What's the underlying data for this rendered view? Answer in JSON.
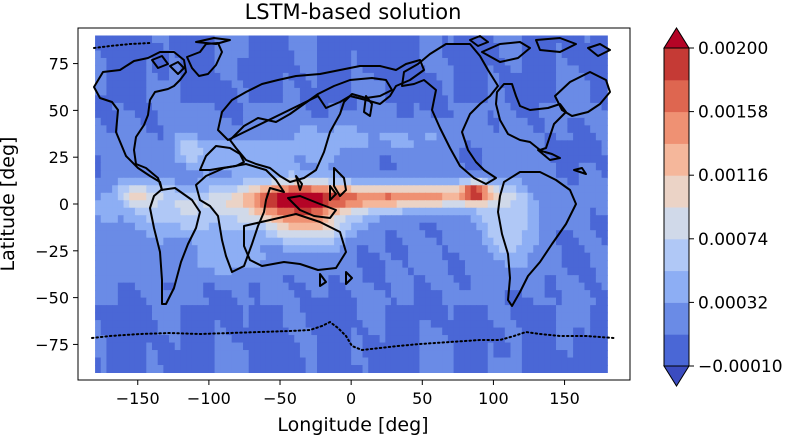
{
  "chart_data": {
    "type": "heatmap",
    "title": "LSTM-based solution",
    "xlabel": "Longitude [deg]",
    "ylabel": "Latitude [deg]",
    "xlim": [
      -192,
      196
    ],
    "ylim": [
      -94,
      94
    ],
    "x_ticks": [
      -150,
      -100,
      -50,
      0,
      50,
      100,
      150
    ],
    "x_tick_labels": [
      "−150",
      "−100",
      "−50",
      "0",
      "50",
      "100",
      "150"
    ],
    "y_ticks": [
      75,
      50,
      25,
      0,
      -25,
      -50,
      -75
    ],
    "y_tick_labels": [
      "75",
      "50",
      "25",
      "0",
      "−25",
      "−50",
      "−75"
    ],
    "grid": false,
    "data_extent": {
      "lon": [
        -180,
        180
      ],
      "lat": [
        -90,
        90
      ]
    },
    "colorbar": {
      "levels": [
        -0.0001,
        0.00011,
        0.00032,
        0.00053,
        0.00074,
        0.00095,
        0.00116,
        0.00137,
        0.00158,
        0.00179,
        0.002
      ],
      "tick_values": [
        -0.0001,
        0.00032,
        0.00074,
        0.00116,
        0.00158,
        0.002
      ],
      "tick_labels": [
        "−0.00010",
        "0.00032",
        "0.00074",
        "0.00116",
        "0.00158",
        "0.00200"
      ],
      "colors": [
        "#4a67d6",
        "#6a8be6",
        "#8daef4",
        "#b0c8f6",
        "#d0d9e9",
        "#ebd3c6",
        "#f5b79b",
        "#ef9173",
        "#de6650",
        "#c53a35"
      ],
      "under_color": "#3b4cc0",
      "over_color": "#b40426",
      "extend": "both"
    },
    "features": [
      {
        "lon": 0,
        "lat": 3,
        "slon": 55,
        "slat": 5,
        "value": 0.00105
      },
      {
        "lon": -40,
        "lat": 5,
        "slon": 28,
        "slat": 7,
        "value": 0.0006
      },
      {
        "lon": 60,
        "lat": 5,
        "slon": 30,
        "slat": 4,
        "value": 0.0008
      },
      {
        "lon": 88,
        "lat": 7,
        "slon": 7,
        "slat": 4,
        "value": 0.001
      },
      {
        "lon": -35,
        "lat": -5,
        "slon": 20,
        "slat": 10,
        "value": 0.0008
      },
      {
        "lon": -20,
        "lat": -12,
        "slon": 18,
        "slat": 6,
        "value": 0.0004
      },
      {
        "lon": -100,
        "lat": -5,
        "slon": 50,
        "slat": 10,
        "value": 0.00055
      },
      {
        "lon": -150,
        "lat": 5,
        "slon": 12,
        "slat": 5,
        "value": 0.0007
      },
      {
        "lon": -75,
        "lat": 25,
        "slon": 35,
        "slat": 6,
        "value": 0.0003
      },
      {
        "lon": 0,
        "lat": 35,
        "slon": 50,
        "slat": 6,
        "value": 0.00028
      },
      {
        "lon": 110,
        "lat": -10,
        "slon": 15,
        "slat": 15,
        "value": 0.0006
      },
      {
        "lon": -115,
        "lat": 30,
        "slon": 8,
        "slat": 6,
        "value": 0.0005
      },
      {
        "lon": -95,
        "lat": -30,
        "slon": 40,
        "slat": 6,
        "value": 0.00025
      }
    ]
  }
}
